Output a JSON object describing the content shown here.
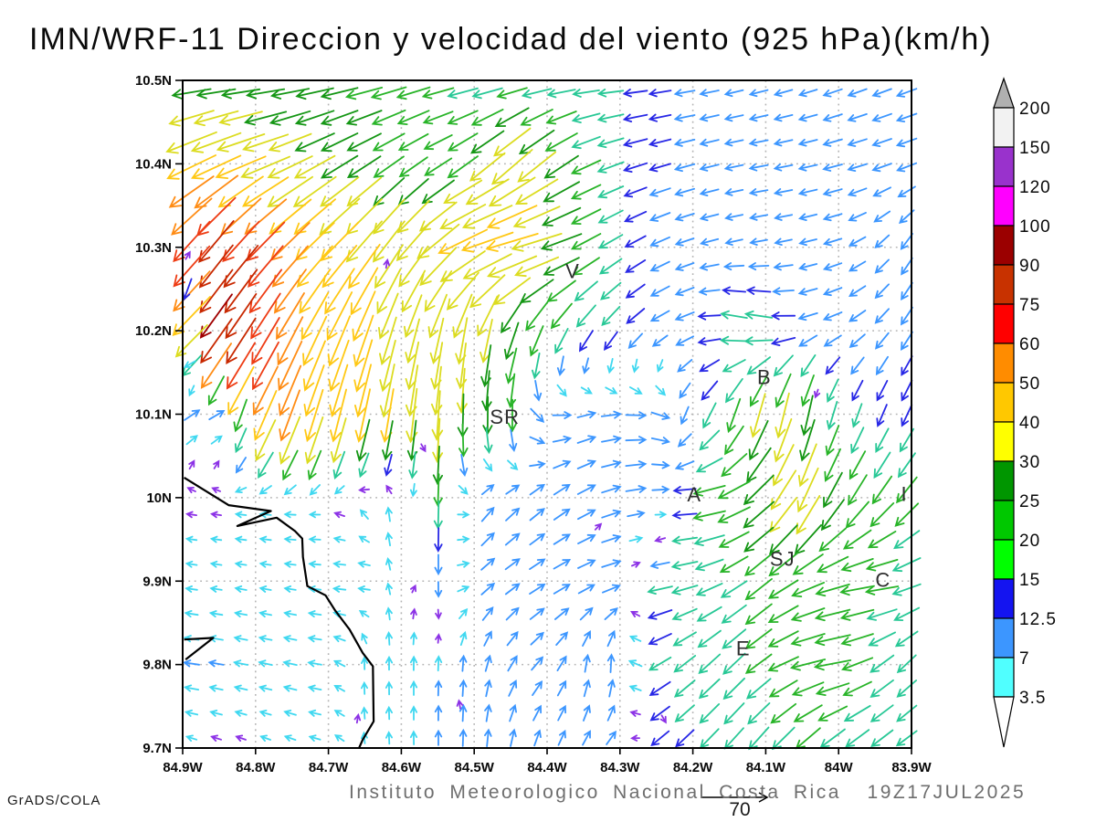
{
  "title": "IMN/WRF-11 Direccion y velocidad del viento (925 hPa)(km/h)",
  "caption": "Instituto Meteorologico Nacional Costa Rica  19Z17JUL2025",
  "credit": "GrADS/COLA",
  "reference_arrow": {
    "label": "70"
  },
  "axes": {
    "lat_labels": [
      "10.5N",
      "10.4N",
      "10.3N",
      "10.2N",
      "10.1N",
      "10N",
      "9.9N",
      "9.8N",
      "9.7N"
    ],
    "lon_labels": [
      "84.9W",
      "84.8W",
      "84.7W",
      "84.6W",
      "84.5W",
      "84.4W",
      "84.3W",
      "84.2W",
      "84.1W",
      "84W",
      "83.9W"
    ]
  },
  "colorbar": {
    "levels": [
      "200",
      "150",
      "120",
      "100",
      "90",
      "75",
      "60",
      "50",
      "40",
      "30",
      "25",
      "20",
      "15",
      "12.5",
      "7",
      "3.5"
    ],
    "colors": [
      "#f2f2f2",
      "#9932cc",
      "#ff00ff",
      "#9b0000",
      "#c83200",
      "#ff0000",
      "#ff8c00",
      "#ffc800",
      "#ffff00",
      "#009600",
      "#00c800",
      "#00ff00",
      "#1414f0",
      "#3c96ff",
      "#50ffff"
    ],
    "top_cap_color": "#b0b0b0",
    "bottom_cap_color": "#ffffff"
  },
  "cities": [
    {
      "label": "V",
      "lon": -84.365,
      "lat": 10.272
    },
    {
      "label": "B",
      "lon": -84.102,
      "lat": 10.145
    },
    {
      "label": "SR",
      "lon": -84.458,
      "lat": 10.097
    },
    {
      "label": "A",
      "lon": -84.198,
      "lat": 10.004
    },
    {
      "label": "I",
      "lon": -83.91,
      "lat": 10.005
    },
    {
      "label": "SJ",
      "lon": -84.077,
      "lat": 9.927
    },
    {
      "label": "C",
      "lon": -83.939,
      "lat": 9.902
    },
    {
      "label": "E",
      "lon": -84.131,
      "lat": 9.82
    }
  ],
  "chart_data": {
    "type": "vector_field",
    "variable": "wind direction and speed",
    "units": "km/h",
    "level": "925 hPa",
    "lon_range": [
      -84.9,
      -83.9
    ],
    "lat_range": [
      9.7,
      10.5
    ],
    "grid_lats": [
      10.5,
      10.4,
      10.3,
      10.2,
      10.1,
      10.0,
      9.9,
      9.8,
      9.7
    ],
    "grid_lons": [
      -84.9,
      -84.85,
      -84.8,
      -84.75,
      -84.7,
      -84.65,
      -84.6,
      -84.55,
      -84.5,
      -84.45,
      -84.4,
      -84.35,
      -84.3,
      -84.25,
      -84.2,
      -84.15,
      -84.1,
      -84.05,
      -84.0,
      -83.95,
      -83.9
    ],
    "vectors_dir_speed": [
      [
        [
          185,
          24
        ],
        [
          185,
          24
        ],
        [
          186,
          24
        ],
        [
          188,
          25
        ],
        [
          190,
          25
        ],
        [
          192,
          25
        ],
        [
          195,
          24
        ],
        [
          193,
          21
        ],
        [
          190,
          19
        ],
        [
          188,
          18
        ],
        [
          185,
          17
        ],
        [
          185,
          16
        ],
        [
          185,
          15
        ],
        [
          188,
          13
        ],
        [
          190,
          11
        ],
        [
          193,
          10
        ],
        [
          195,
          10
        ],
        [
          197,
          10
        ],
        [
          200,
          11
        ],
        [
          200,
          11
        ],
        [
          200,
          12
        ]
      ],
      [
        [
          205,
          45
        ],
        [
          203,
          42
        ],
        [
          200,
          38
        ],
        [
          205,
          34
        ],
        [
          210,
          30
        ],
        [
          212,
          26
        ],
        [
          215,
          23
        ],
        [
          212,
          20
        ],
        [
          218,
          26
        ],
        [
          222,
          38
        ],
        [
          218,
          32
        ],
        [
          205,
          21
        ],
        [
          198,
          16
        ],
        [
          196,
          13
        ],
        [
          195,
          11
        ],
        [
          192,
          10
        ],
        [
          190,
          10
        ],
        [
          192,
          10
        ],
        [
          195,
          11
        ],
        [
          198,
          11
        ],
        [
          200,
          12
        ]
      ],
      [
        [
          228,
          62
        ],
        [
          231,
          85
        ],
        [
          227,
          66
        ],
        [
          225,
          53
        ],
        [
          225,
          46
        ],
        [
          230,
          41
        ],
        [
          235,
          36
        ],
        [
          220,
          40
        ],
        [
          200,
          46
        ],
        [
          195,
          44
        ],
        [
          196,
          35
        ],
        [
          208,
          22
        ],
        [
          212,
          15
        ],
        [
          205,
          12
        ],
        [
          197,
          10
        ],
        [
          192,
          9
        ],
        [
          190,
          9
        ],
        [
          193,
          9
        ],
        [
          198,
          10
        ],
        [
          220,
          10
        ],
        [
          238,
          11
        ]
      ],
      [
        [
          205,
          17
        ],
        [
          235,
          100
        ],
        [
          238,
          86
        ],
        [
          242,
          55
        ],
        [
          245,
          47
        ],
        [
          250,
          42
        ],
        [
          253,
          30
        ],
        [
          256,
          32
        ],
        [
          260,
          34
        ],
        [
          250,
          27
        ],
        [
          242,
          22
        ],
        [
          235,
          18
        ],
        [
          228,
          15
        ],
        [
          212,
          12
        ],
        [
          200,
          11
        ],
        [
          168,
          18
        ],
        [
          170,
          19
        ],
        [
          195,
          11
        ],
        [
          205,
          11
        ],
        [
          225,
          11
        ],
        [
          238,
          12
        ]
      ],
      [
        [
          35,
          10
        ],
        [
          30,
          9
        ],
        [
          245,
          42
        ],
        [
          250,
          52
        ],
        [
          255,
          48
        ],
        [
          258,
          44
        ],
        [
          262,
          41
        ],
        [
          266,
          35
        ],
        [
          270,
          28
        ],
        [
          268,
          22
        ],
        [
          350,
          10
        ],
        [
          15,
          10
        ],
        [
          5,
          11
        ],
        [
          350,
          12
        ],
        [
          235,
          14
        ],
        [
          250,
          22
        ],
        [
          255,
          34
        ],
        [
          258,
          30
        ],
        [
          252,
          16
        ],
        [
          248,
          14
        ],
        [
          245,
          14
        ]
      ],
      [
        [
          172,
          3
        ],
        [
          172,
          3
        ],
        [
          175,
          4
        ],
        [
          178,
          4
        ],
        [
          182,
          3
        ],
        [
          120,
          5
        ],
        [
          90,
          8
        ],
        [
          268,
          20
        ],
        [
          55,
          10
        ],
        [
          45,
          10
        ],
        [
          40,
          10
        ],
        [
          30,
          11
        ],
        [
          15,
          11
        ],
        [
          5,
          12
        ],
        [
          182,
          21
        ],
        [
          200,
          24
        ],
        [
          225,
          30
        ],
        [
          245,
          36
        ],
        [
          240,
          26
        ],
        [
          235,
          23
        ],
        [
          230,
          22
        ]
      ],
      [
        [
          172,
          4
        ],
        [
          172,
          4
        ],
        [
          170,
          4
        ],
        [
          172,
          4
        ],
        [
          175,
          5
        ],
        [
          178,
          5
        ],
        [
          80,
          6
        ],
        [
          270,
          9
        ],
        [
          40,
          9
        ],
        [
          35,
          9
        ],
        [
          30,
          10
        ],
        [
          25,
          10
        ],
        [
          15,
          11
        ],
        [
          190,
          15
        ],
        [
          195,
          17
        ],
        [
          210,
          19
        ],
        [
          220,
          23
        ],
        [
          205,
          23
        ],
        [
          195,
          23
        ],
        [
          185,
          23
        ],
        [
          200,
          19
        ]
      ],
      [
        [
          172,
          8
        ],
        [
          170,
          7
        ],
        [
          168,
          6
        ],
        [
          168,
          6
        ],
        [
          172,
          6
        ],
        [
          90,
          5
        ],
        [
          90,
          6
        ],
        [
          88,
          7
        ],
        [
          85,
          8
        ],
        [
          60,
          9
        ],
        [
          45,
          9
        ],
        [
          80,
          9
        ],
        [
          90,
          10
        ],
        [
          210,
          15
        ],
        [
          220,
          17
        ],
        [
          225,
          19
        ],
        [
          215,
          21
        ],
        [
          195,
          23
        ],
        [
          190,
          25
        ],
        [
          215,
          19
        ],
        [
          225,
          15
        ]
      ],
      [
        [
          160,
          3
        ],
        [
          160,
          3
        ],
        [
          158,
          3
        ],
        [
          160,
          4
        ],
        [
          165,
          4
        ],
        [
          95,
          4
        ],
        [
          92,
          5
        ],
        [
          90,
          7
        ],
        [
          88,
          9
        ],
        [
          80,
          9
        ],
        [
          70,
          8
        ],
        [
          60,
          8
        ],
        [
          45,
          8
        ],
        [
          220,
          13
        ],
        [
          225,
          15
        ],
        [
          228,
          17
        ],
        [
          230,
          19
        ],
        [
          225,
          21
        ],
        [
          220,
          19
        ],
        [
          218,
          17
        ],
        [
          215,
          15
        ]
      ]
    ],
    "extra_vectors": [
      [
        -84.893,
        10.29,
        60,
        2
      ],
      [
        -84.893,
        10.25,
        250,
        13
      ],
      [
        -84.89,
        10.16,
        210,
        5
      ],
      [
        -84.62,
        10.28,
        80,
        2
      ],
      [
        -84.57,
        10.06,
        300,
        2
      ],
      [
        -84.33,
        9.965,
        45,
        2
      ],
      [
        -84.03,
        10.125,
        250,
        2
      ],
      [
        -84.52,
        9.752,
        100,
        2
      ],
      [
        -84.66,
        9.735,
        80,
        2
      ],
      [
        -84.24,
        9.735,
        300,
        2
      ]
    ],
    "speed_levels": [
      3.5,
      7,
      12.5,
      15,
      20,
      25,
      30,
      40,
      50,
      60,
      75,
      90,
      100,
      120,
      150,
      200
    ],
    "arrow_colors": [
      "#8c32e6",
      "#40d8f0",
      "#3c96ff",
      "#2828e6",
      "#28c896",
      "#28b428",
      "#149614",
      "#dcdc20",
      "#ffc814",
      "#ff8c14",
      "#ee3c14",
      "#c82800",
      "#a00000",
      "#e614c8",
      "#9632c8",
      "#e6e6e6",
      "#aaaaaa"
    ],
    "coastline": [
      [
        -84.898,
        10.024
      ],
      [
        -84.837,
        9.991
      ],
      [
        -84.779,
        9.984
      ],
      [
        -84.825,
        9.966
      ],
      [
        -84.771,
        9.976
      ],
      [
        -84.746,
        9.96
      ],
      [
        -84.736,
        9.951
      ],
      [
        -84.735,
        9.929
      ],
      [
        -84.729,
        9.894
      ],
      [
        -84.704,
        9.883
      ],
      [
        -84.691,
        9.865
      ],
      [
        -84.671,
        9.842
      ],
      [
        -84.653,
        9.814
      ],
      [
        -84.639,
        9.798
      ],
      [
        -84.638,
        9.732
      ],
      [
        -84.653,
        9.71
      ],
      [
        -84.658,
        9.7
      ]
    ],
    "peninsula": [
      [
        -84.898,
        9.83
      ],
      [
        -84.858,
        9.832
      ],
      [
        -84.896,
        9.806
      ]
    ],
    "grid_on": true
  }
}
